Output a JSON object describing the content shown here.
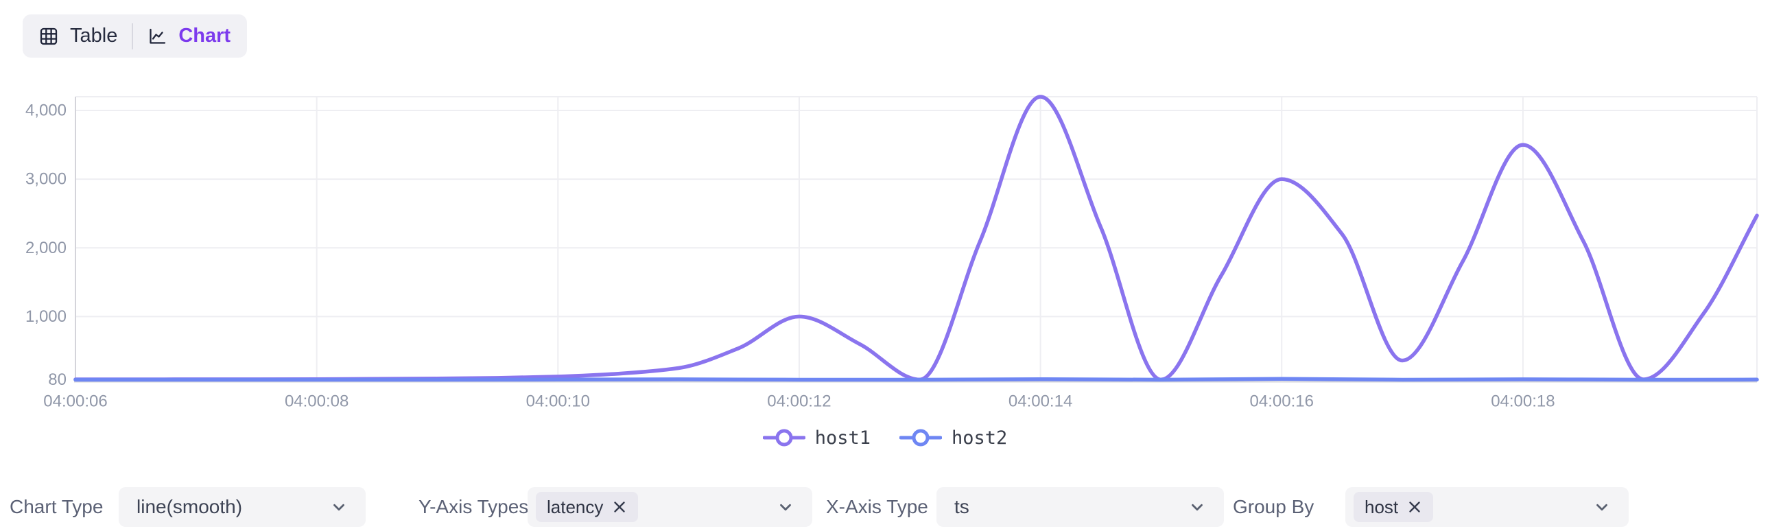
{
  "view_toggle": {
    "table_label": "Table",
    "chart_label": "Chart",
    "active": "chart"
  },
  "chart_data": {
    "type": "line",
    "smooth": true,
    "title": "",
    "xlabel": "ts",
    "ylabel": "latency",
    "grid": true,
    "legend_position": "bottom",
    "xlim_seconds": [
      6,
      19.94
    ],
    "ylim": [
      80,
      4200
    ],
    "x_ticks": [
      {
        "s": 6,
        "label": "04:00:06"
      },
      {
        "s": 8,
        "label": "04:00:08"
      },
      {
        "s": 10,
        "label": "04:00:10"
      },
      {
        "s": 12,
        "label": "04:00:12"
      },
      {
        "s": 14,
        "label": "04:00:14"
      },
      {
        "s": 16,
        "label": "04:00:16"
      },
      {
        "s": 18,
        "label": "04:00:18"
      }
    ],
    "y_ticks": [
      {
        "v": 80,
        "label": "80"
      },
      {
        "v": 1000,
        "label": "1,000"
      },
      {
        "v": 2000,
        "label": "2,000"
      },
      {
        "v": 3000,
        "label": "3,000"
      },
      {
        "v": 4000,
        "label": "4,000"
      }
    ],
    "series": [
      {
        "name": "host1",
        "color": "#8a74ee",
        "x_seconds": [
          6,
          6.5,
          7,
          7.5,
          8,
          8.5,
          9,
          9.5,
          10,
          10.5,
          11,
          11.5,
          12,
          12.5,
          13,
          13.5,
          14,
          14.5,
          15,
          15.5,
          16,
          16.5,
          17,
          17.5,
          18,
          18.5,
          19,
          19.5,
          19.94
        ],
        "values": [
          85,
          85,
          86,
          86,
          88,
          92,
          97,
          106,
          126,
          168,
          250,
          540,
          1000,
          600,
          82,
          2100,
          4200,
          2300,
          82,
          1600,
          3000,
          2200,
          360,
          1800,
          3500,
          2100,
          85,
          1050,
          2470
        ]
      },
      {
        "name": "host2",
        "color": "#6e86f3",
        "x_seconds": [
          6,
          7,
          8,
          9,
          10,
          11,
          12,
          13,
          14,
          15,
          16,
          17,
          18,
          19,
          19.94
        ],
        "values": [
          80,
          80,
          80,
          80,
          82,
          86,
          80,
          80,
          88,
          80,
          92,
          80,
          86,
          80,
          82
        ]
      }
    ]
  },
  "controls": {
    "chart_type": {
      "label": "Chart Type",
      "value": "line(smooth)"
    },
    "y_axis_types": {
      "label": "Y-Axis Types",
      "tags": [
        {
          "label": "latency"
        }
      ]
    },
    "x_axis_type": {
      "label": "X-Axis Type",
      "value": "ts"
    },
    "group_by": {
      "label": "Group By",
      "tags": [
        {
          "label": "host"
        }
      ]
    }
  },
  "icons": {
    "table": "table-grid-icon",
    "chart": "line-chart-icon",
    "chevron": "chevron-down-icon",
    "remove_tag": "x-mark-icon",
    "legend_marker": "line-circle-marker-icon"
  },
  "colors": {
    "accent": "#7c3aed",
    "host1_line": "#8a74ee",
    "host2_line": "#6e86f3",
    "axis_text": "#9097a8",
    "grid_line": "#eeeef2",
    "axis_line": "#d4d4da",
    "toggle_bg": "#f1f1f5",
    "select_bg": "#f4f4f6",
    "tag_bg": "#e9e8ef"
  }
}
